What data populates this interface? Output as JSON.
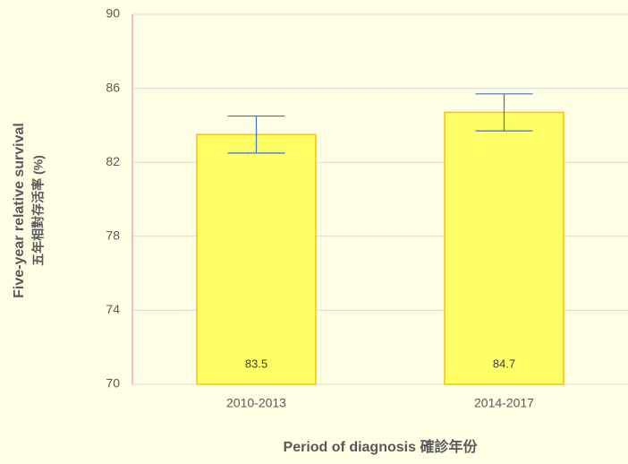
{
  "chart_data": {
    "type": "bar",
    "categories": [
      "2010-2013",
      "2014-2017"
    ],
    "values": [
      83.5,
      84.7
    ],
    "errors": [
      1.0,
      1.0
    ],
    "color": "#ffff66",
    "edge_color": "#ffc000",
    "error_color": "#4472c4",
    "ylim": [
      70,
      90
    ],
    "yticks": [
      70,
      74,
      78,
      82,
      86,
      90
    ],
    "grid": true,
    "y_label": [
      "Five-year relative survival",
      "五年相對存活率 (%)"
    ],
    "x_label": "Period of diagnosis 確診年份"
  }
}
